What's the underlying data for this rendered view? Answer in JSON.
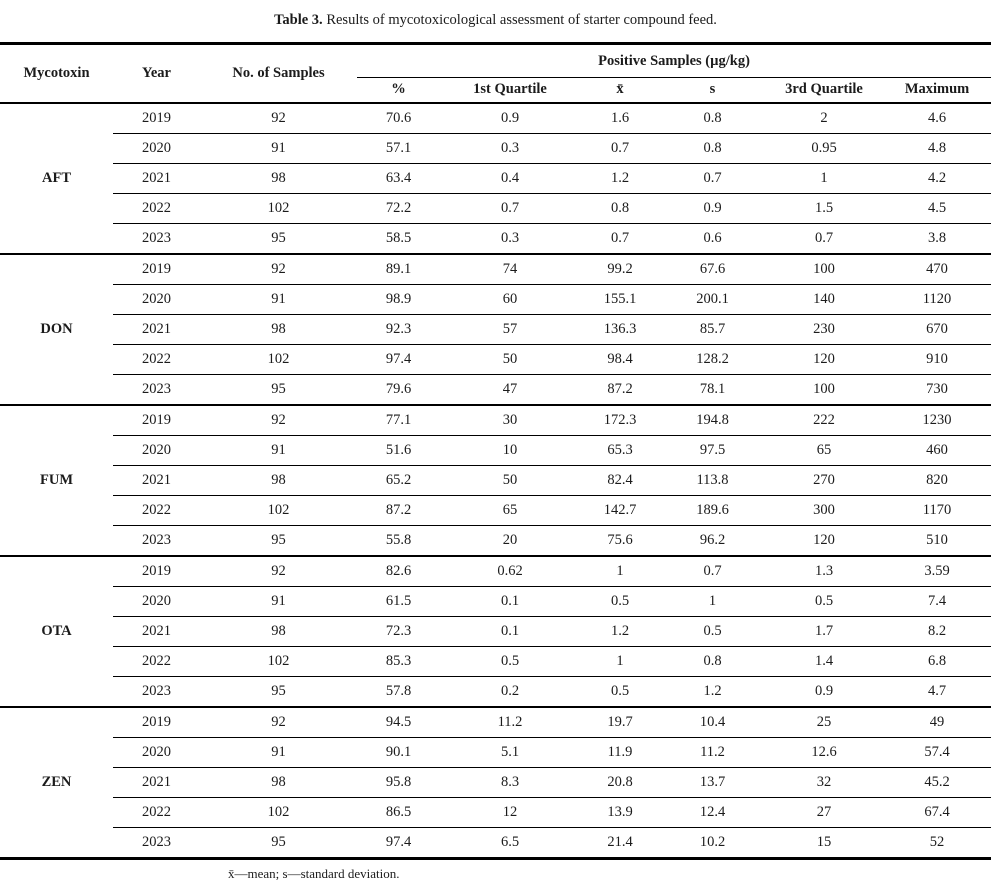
{
  "caption": {
    "label": "Table 3.",
    "text": "Results of mycotoxicological assessment of starter compound feed."
  },
  "table": {
    "columns": [
      "Mycotoxin",
      "Year",
      "No. of Samples"
    ],
    "group_header": "Positive Samples (µg/kg)",
    "subcolumns": [
      "%",
      "1st Quartile",
      "x̄",
      "s",
      "3rd Quartile",
      "Maximum"
    ],
    "groups": [
      {
        "mycotoxin": "AFT",
        "rows": [
          {
            "year": "2019",
            "values": [
              "92",
              "70.6",
              "0.9",
              "1.6",
              "0.8",
              "2",
              "4.6"
            ]
          },
          {
            "year": "2020",
            "values": [
              "91",
              "57.1",
              "0.3",
              "0.7",
              "0.8",
              "0.95",
              "4.8"
            ]
          },
          {
            "year": "2021",
            "values": [
              "98",
              "63.4",
              "0.4",
              "1.2",
              "0.7",
              "1",
              "4.2"
            ]
          },
          {
            "year": "2022",
            "values": [
              "102",
              "72.2",
              "0.7",
              "0.8",
              "0.9",
              "1.5",
              "4.5"
            ]
          },
          {
            "year": "2023",
            "values": [
              "95",
              "58.5",
              "0.3",
              "0.7",
              "0.6",
              "0.7",
              "3.8"
            ]
          }
        ]
      },
      {
        "mycotoxin": "DON",
        "rows": [
          {
            "year": "2019",
            "values": [
              "92",
              "89.1",
              "74",
              "99.2",
              "67.6",
              "100",
              "470"
            ]
          },
          {
            "year": "2020",
            "values": [
              "91",
              "98.9",
              "60",
              "155.1",
              "200.1",
              "140",
              "1120"
            ]
          },
          {
            "year": "2021",
            "values": [
              "98",
              "92.3",
              "57",
              "136.3",
              "85.7",
              "230",
              "670"
            ]
          },
          {
            "year": "2022",
            "values": [
              "102",
              "97.4",
              "50",
              "98.4",
              "128.2",
              "120",
              "910"
            ]
          },
          {
            "year": "2023",
            "values": [
              "95",
              "79.6",
              "47",
              "87.2",
              "78.1",
              "100",
              "730"
            ]
          }
        ]
      },
      {
        "mycotoxin": "FUM",
        "rows": [
          {
            "year": "2019",
            "values": [
              "92",
              "77.1",
              "30",
              "172.3",
              "194.8",
              "222",
              "1230"
            ]
          },
          {
            "year": "2020",
            "values": [
              "91",
              "51.6",
              "10",
              "65.3",
              "97.5",
              "65",
              "460"
            ]
          },
          {
            "year": "2021",
            "values": [
              "98",
              "65.2",
              "50",
              "82.4",
              "113.8",
              "270",
              "820"
            ]
          },
          {
            "year": "2022",
            "values": [
              "102",
              "87.2",
              "65",
              "142.7",
              "189.6",
              "300",
              "1170"
            ]
          },
          {
            "year": "2023",
            "values": [
              "95",
              "55.8",
              "20",
              "75.6",
              "96.2",
              "120",
              "510"
            ]
          }
        ]
      },
      {
        "mycotoxin": "OTA",
        "rows": [
          {
            "year": "2019",
            "values": [
              "92",
              "82.6",
              "0.62",
              "1",
              "0.7",
              "1.3",
              "3.59"
            ]
          },
          {
            "year": "2020",
            "values": [
              "91",
              "61.5",
              "0.1",
              "0.5",
              "1",
              "0.5",
              "7.4"
            ]
          },
          {
            "year": "2021",
            "values": [
              "98",
              "72.3",
              "0.1",
              "1.2",
              "0.5",
              "1.7",
              "8.2"
            ]
          },
          {
            "year": "2022",
            "values": [
              "102",
              "85.3",
              "0.5",
              "1",
              "0.8",
              "1.4",
              "6.8"
            ]
          },
          {
            "year": "2023",
            "values": [
              "95",
              "57.8",
              "0.2",
              "0.5",
              "1.2",
              "0.9",
              "4.7"
            ]
          }
        ]
      },
      {
        "mycotoxin": "ZEN",
        "rows": [
          {
            "year": "2019",
            "values": [
              "92",
              "94.5",
              "11.2",
              "19.7",
              "10.4",
              "25",
              "49"
            ]
          },
          {
            "year": "2020",
            "values": [
              "91",
              "90.1",
              "5.1",
              "11.9",
              "11.2",
              "12.6",
              "57.4"
            ]
          },
          {
            "year": "2021",
            "values": [
              "98",
              "95.8",
              "8.3",
              "20.8",
              "13.7",
              "32",
              "45.2"
            ]
          },
          {
            "year": "2022",
            "values": [
              "102",
              "86.5",
              "12",
              "13.9",
              "12.4",
              "27",
              "67.4"
            ]
          },
          {
            "year": "2023",
            "values": [
              "95",
              "97.4",
              "6.5",
              "21.4",
              "10.2",
              "15",
              "52"
            ]
          }
        ]
      }
    ]
  },
  "footnote": "x̄—mean; s—standard deviation.",
  "colors": {
    "text": "#1b1b1b",
    "rule": "#000000",
    "background": "#ffffff"
  }
}
